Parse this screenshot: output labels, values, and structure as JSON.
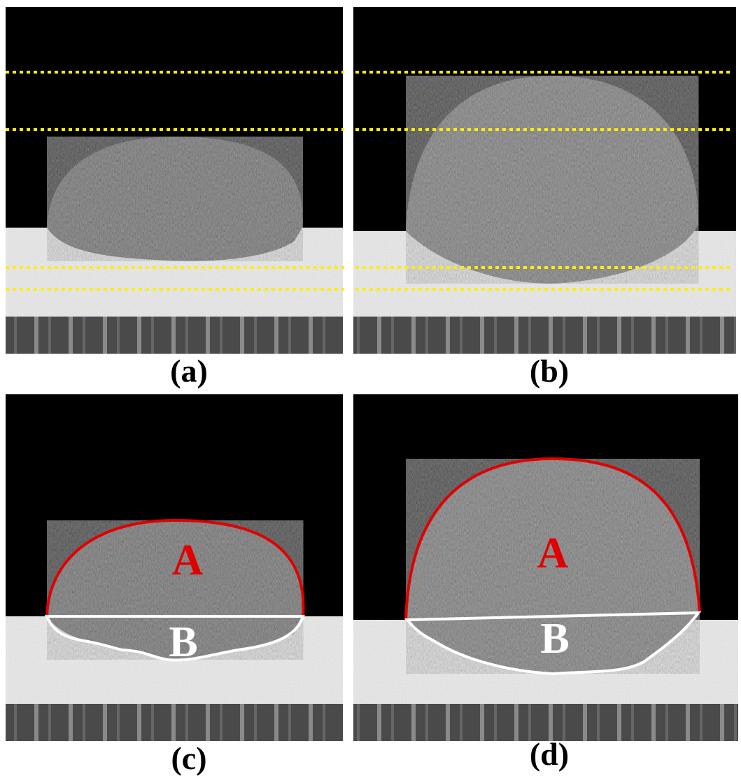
{
  "panels": [
    {
      "label": "(a)"
    },
    {
      "label": "(b)"
    },
    {
      "label": "(c)",
      "regions": [
        "A",
        "B"
      ]
    },
    {
      "label": "(d)",
      "regions": [
        "A",
        "B"
      ]
    }
  ]
}
